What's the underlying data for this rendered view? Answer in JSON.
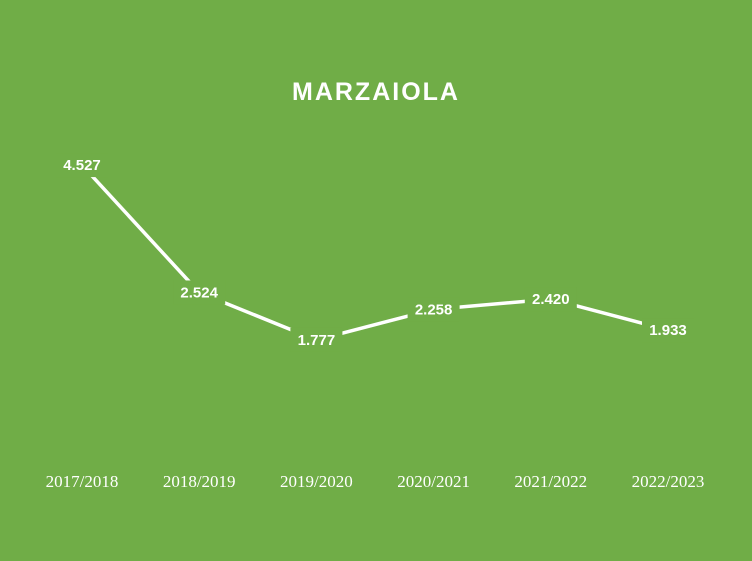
{
  "chart_data": {
    "type": "line",
    "title": "MARZAIOLA",
    "categories": [
      "2017/2018",
      "2018/2019",
      "2019/2020",
      "2020/2021",
      "2021/2022",
      "2022/2023"
    ],
    "values": [
      4527,
      2524,
      1777,
      2258,
      2420,
      1933
    ],
    "value_labels": [
      "4.527",
      "2.524",
      "1.777",
      "2.258",
      "2.420",
      "1.933"
    ],
    "color": "#ffffff"
  }
}
